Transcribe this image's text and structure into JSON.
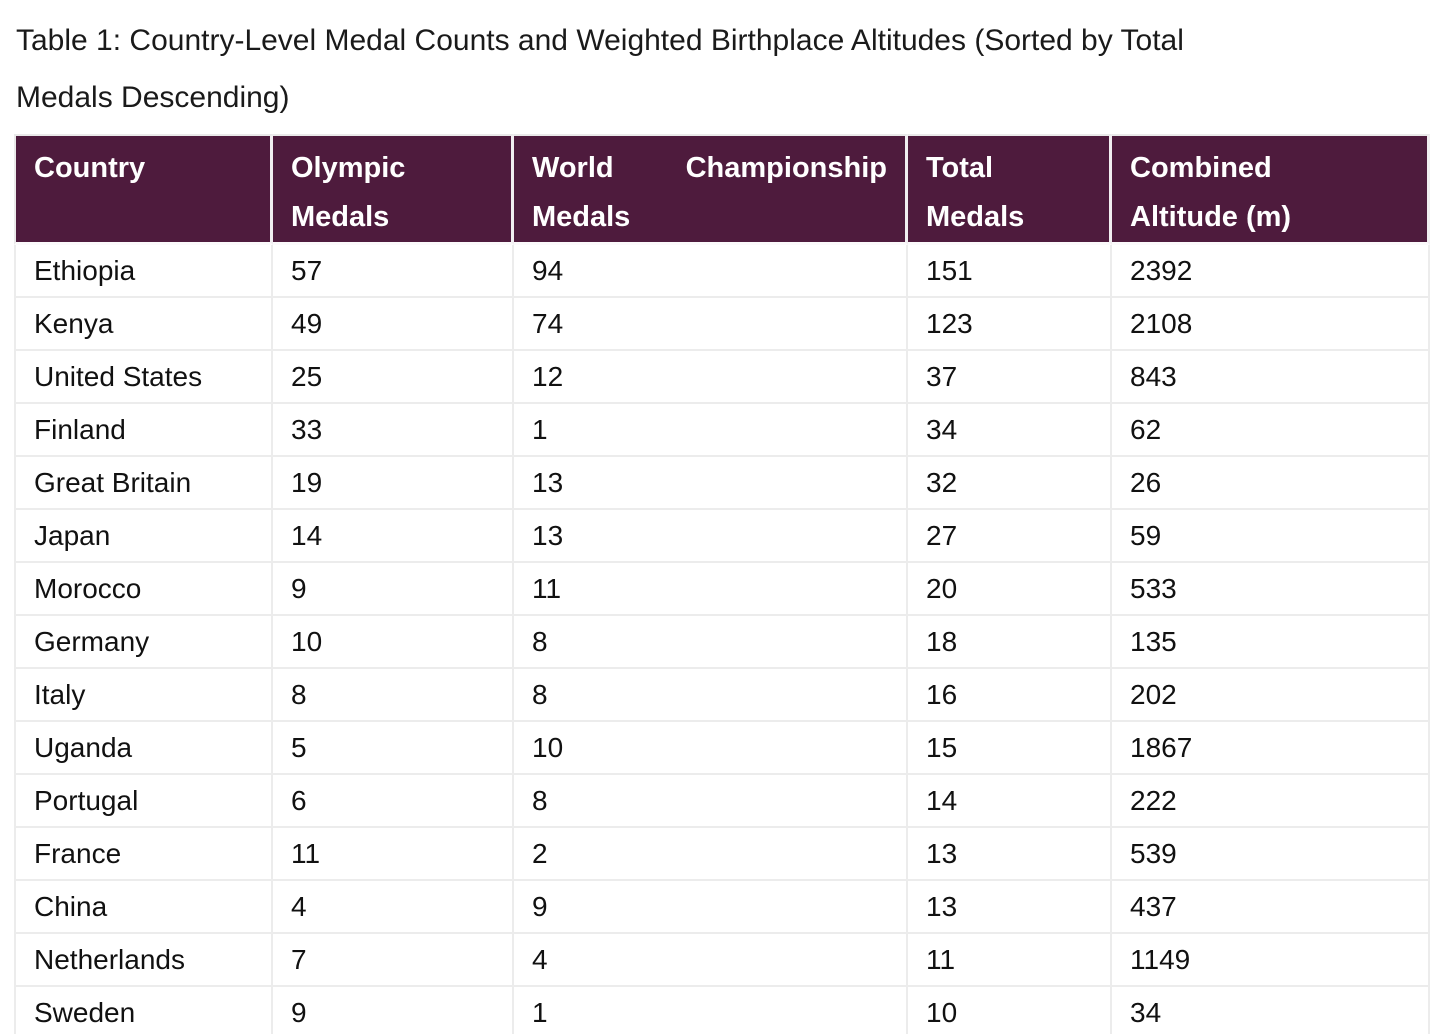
{
  "caption": {
    "line1": "Table 1: Country-Level Medal Counts and Weighted Birthplace Altitudes (Sorted by Total",
    "line2": "Medals Descending)"
  },
  "colors": {
    "header_bg": "#4e1b3d",
    "header_text": "#ffffff",
    "body_text": "#111111",
    "grid_line": "#ececec"
  },
  "table": {
    "headers": [
      {
        "id": "country",
        "line1": "Country",
        "line2": ""
      },
      {
        "id": "olympic",
        "line1": "Olympic",
        "line2": "Medals"
      },
      {
        "id": "world",
        "line1": "World Championship",
        "line2": "Medals"
      },
      {
        "id": "total",
        "line1": "Total",
        "line2": "Medals"
      },
      {
        "id": "altitude",
        "line1": "Combined",
        "line2": "Altitude (m)"
      }
    ],
    "rows": [
      {
        "country": "Ethiopia",
        "olympic": "57",
        "world": "94",
        "total": "151",
        "altitude": "2392"
      },
      {
        "country": "Kenya",
        "olympic": "49",
        "world": "74",
        "total": "123",
        "altitude": "2108"
      },
      {
        "country": "United States",
        "olympic": "25",
        "world": "12",
        "total": "37",
        "altitude": "843"
      },
      {
        "country": "Finland",
        "olympic": "33",
        "world": "1",
        "total": "34",
        "altitude": "62"
      },
      {
        "country": "Great Britain",
        "olympic": "19",
        "world": "13",
        "total": "32",
        "altitude": "26"
      },
      {
        "country": "Japan",
        "olympic": "14",
        "world": "13",
        "total": "27",
        "altitude": "59"
      },
      {
        "country": "Morocco",
        "olympic": "9",
        "world": "11",
        "total": "20",
        "altitude": "533"
      },
      {
        "country": "Germany",
        "olympic": "10",
        "world": "8",
        "total": "18",
        "altitude": "135"
      },
      {
        "country": "Italy",
        "olympic": "8",
        "world": "8",
        "total": "16",
        "altitude": "202"
      },
      {
        "country": "Uganda",
        "olympic": "5",
        "world": "10",
        "total": "15",
        "altitude": "1867"
      },
      {
        "country": "Portugal",
        "olympic": "6",
        "world": "8",
        "total": "14",
        "altitude": "222"
      },
      {
        "country": "France",
        "olympic": "11",
        "world": "2",
        "total": "13",
        "altitude": "539"
      },
      {
        "country": "China",
        "olympic": "4",
        "world": "9",
        "total": "13",
        "altitude": "437"
      },
      {
        "country": "Netherlands",
        "olympic": "7",
        "world": "4",
        "total": "11",
        "altitude": "1149"
      },
      {
        "country": "Sweden",
        "olympic": "9",
        "world": "1",
        "total": "10",
        "altitude": "34"
      }
    ],
    "has_partial_row_at_bottom": true
  }
}
